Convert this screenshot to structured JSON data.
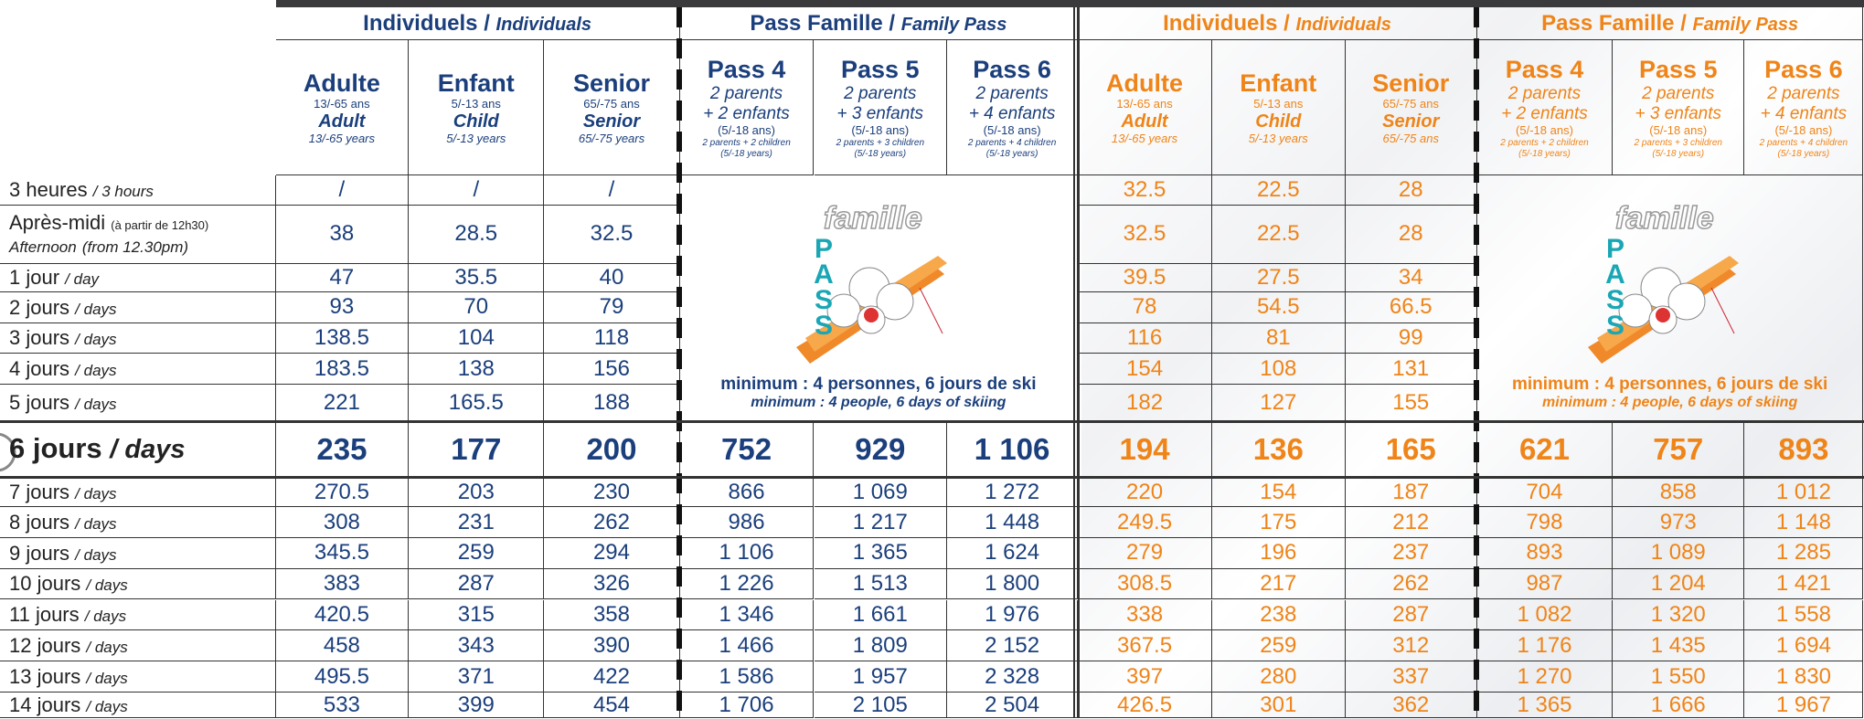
{
  "sections": [
    {
      "group_individual": {
        "fr": "Individuels /",
        "en": "Individuals"
      },
      "group_family": {
        "fr": "Pass Famille /",
        "en": "Family Pass"
      },
      "individual_columns": [
        {
          "name": "Adulte",
          "age": "13/-65 ans",
          "name_en": "Adult",
          "age_en": "13/-65 years"
        },
        {
          "name": "Enfant",
          "age": "5/-13 ans",
          "name_en": "Child",
          "age_en": "5/-13 years"
        },
        {
          "name": "Senior",
          "age": "65/-75 ans",
          "name_en": "Senior",
          "age_en": "65/-75 years"
        }
      ],
      "family_columns": [
        {
          "name": "Pass 4",
          "line1": "2 parents",
          "line2": "+ 2 enfants",
          "age": "(5/-18 ans)",
          "en": "2 parents + 2 children",
          "age_en": "(5/-18 years)"
        },
        {
          "name": "Pass 5",
          "line1": "2 parents",
          "line2": "+ 3 enfants",
          "age": "(5/-18 ans)",
          "en": "2 parents + 3 children",
          "age_en": "(5/-18 years)"
        },
        {
          "name": "Pass 6",
          "line1": "2 parents",
          "line2": "+ 4 enfants",
          "age": "(5/-18 ans)",
          "en": "2 parents + 4 children",
          "age_en": "(5/-18 years)"
        }
      ],
      "family_logo": {
        "word": "famille",
        "pass": "PASS"
      },
      "family_note": {
        "fr": "minimum : 4 personnes, 6 jours de ski",
        "en": "minimum : 4 people, 6 days of skiing"
      },
      "rows": [
        [
          "/",
          "/",
          "/"
        ],
        [
          "38",
          "28.5",
          "32.5"
        ],
        [
          "47",
          "35.5",
          "40"
        ],
        [
          "93",
          "70",
          "79"
        ],
        [
          "138.5",
          "104",
          "118"
        ],
        [
          "183.5",
          "138",
          "156"
        ],
        [
          "221",
          "165.5",
          "188"
        ],
        [
          "235",
          "177",
          "200",
          "752",
          "929",
          "1 106"
        ],
        [
          "270.5",
          "203",
          "230",
          "866",
          "1 069",
          "1 272"
        ],
        [
          "308",
          "231",
          "262",
          "986",
          "1 217",
          "1 448"
        ],
        [
          "345.5",
          "259",
          "294",
          "1 106",
          "1 365",
          "1 624"
        ],
        [
          "383",
          "287",
          "326",
          "1 226",
          "1 513",
          "1 800"
        ],
        [
          "420.5",
          "315",
          "358",
          "1 346",
          "1 661",
          "1 976"
        ],
        [
          "458",
          "343",
          "390",
          "1 466",
          "1 809",
          "2 152"
        ],
        [
          "495.5",
          "371",
          "422",
          "1 586",
          "1 957",
          "2 328"
        ],
        [
          "533",
          "399",
          "454",
          "1 706",
          "2 105",
          "2 504"
        ]
      ]
    },
    {
      "group_individual": {
        "fr": "Individuels /",
        "en": "Individuals"
      },
      "group_family": {
        "fr": "Pass Famille /",
        "en": "Family Pass"
      },
      "individual_columns": [
        {
          "name": "Adulte",
          "age": "13/-65 ans",
          "name_en": "Adult",
          "age_en": "13/-65 years"
        },
        {
          "name": "Enfant",
          "age": "5/-13 ans",
          "name_en": "Child",
          "age_en": "5/-13 years"
        },
        {
          "name": "Senior",
          "age": "65/-75 ans",
          "name_en": "Senior",
          "age_en": "65/-75 ans"
        }
      ],
      "family_columns": [
        {
          "name": "Pass 4",
          "line1": "2 parents",
          "line2": "+ 2 enfants",
          "age": "(5/-18 ans)",
          "en": "2 parents + 2 children",
          "age_en": "(5/-18 years)"
        },
        {
          "name": "Pass 5",
          "line1": "2 parents",
          "line2": "+ 3 enfants",
          "age": "(5/-18 ans)",
          "en": "2 parents + 3 children",
          "age_en": "(5/-18 years)"
        },
        {
          "name": "Pass 6",
          "line1": "2 parents",
          "line2": "+ 4 enfants",
          "age": "(5/-18 ans)",
          "en": "2 parents + 4 children",
          "age_en": "(5/-18 years)"
        }
      ],
      "family_logo": {
        "word": "famille",
        "pass": "PASS"
      },
      "family_note": {
        "fr": "minimum : 4 personnes,  6 jours de ski",
        "en": "minimum : 4 people, 6 days of skiing"
      },
      "rows": [
        [
          "32.5",
          "22.5",
          "28"
        ],
        [
          "32.5",
          "22.5",
          "28"
        ],
        [
          "39.5",
          "27.5",
          "34"
        ],
        [
          "78",
          "54.5",
          "66.5"
        ],
        [
          "116",
          "81",
          "99"
        ],
        [
          "154",
          "108",
          "131"
        ],
        [
          "182",
          "127",
          "155"
        ],
        [
          "194",
          "136",
          "165",
          "621",
          "757",
          "893"
        ],
        [
          "220",
          "154",
          "187",
          "704",
          "858",
          "1 012"
        ],
        [
          "249.5",
          "175",
          "212",
          "798",
          "973",
          "1 148"
        ],
        [
          "279",
          "196",
          "237",
          "893",
          "1 089",
          "1 285"
        ],
        [
          "308.5",
          "217",
          "262",
          "987",
          "1 204",
          "1 421"
        ],
        [
          "338",
          "238",
          "287",
          "1 082",
          "1 320",
          "1 558"
        ],
        [
          "367.5",
          "259",
          "312",
          "1 176",
          "1 435",
          "1 694"
        ],
        [
          "397",
          "280",
          "337",
          "1 270",
          "1 550",
          "1 830"
        ],
        [
          "426.5",
          "301",
          "362",
          "1 365",
          "1 666",
          "1 967"
        ]
      ]
    }
  ],
  "row_labels": [
    {
      "fr": "3 heures",
      "en": "/ 3 hours"
    },
    {
      "fr": "Après-midi",
      "fr_note": "(à partir de 12h30)",
      "en": "Afternoon",
      "en_note": "(from 12.30pm)"
    },
    {
      "fr": "1 jour",
      "en": "/ day"
    },
    {
      "fr": "2 jours",
      "en": "/ days"
    },
    {
      "fr": "3 jours",
      "en": "/ days"
    },
    {
      "fr": "4 jours",
      "en": "/ days"
    },
    {
      "fr": "5 jours",
      "en": "/ days"
    },
    {
      "fr": "6 jours",
      "en": "/ days"
    },
    {
      "fr": "7 jours",
      "en": "/ days"
    },
    {
      "fr": "8 jours",
      "en": "/ days"
    },
    {
      "fr": "9 jours",
      "en": "/ days"
    },
    {
      "fr": "10 jours",
      "en": "/ days"
    },
    {
      "fr": "11 jours",
      "en": "/ days"
    },
    {
      "fr": "12 jours",
      "en": "/ days"
    },
    {
      "fr": "13 jours",
      "en": "/ days"
    },
    {
      "fr": "14 jours",
      "en": "/ days"
    }
  ]
}
